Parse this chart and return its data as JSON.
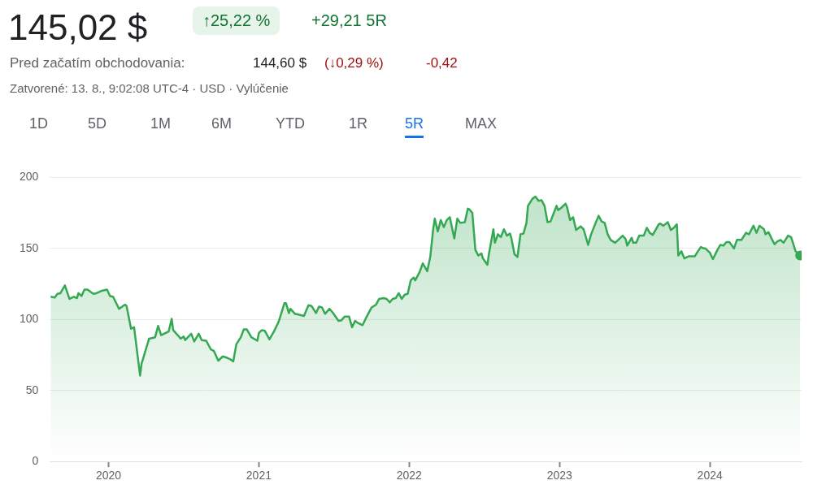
{
  "chart_data": {
    "type": "area",
    "title": "145,02 $",
    "subtitle": "Zatvorené: 13. 8., 9:02:08 UTC-4 · USD · Vylúčenie",
    "annotations": [
      "↑25,22 %",
      "+29,21 5R",
      "Pred začatím obchodovania:",
      "144,60 $",
      "(↓0,29 %)",
      "-0,42",
      "1D",
      "5D",
      "1M",
      "6M",
      "YTD",
      "1R",
      "5R",
      "MAX"
    ],
    "xlim": [
      2019.61,
      2024.61
    ],
    "xticks": [
      2020,
      2021,
      2022,
      2023,
      2024
    ],
    "ylim": [
      0,
      200
    ],
    "yticks": [
      0,
      50,
      100,
      150,
      200
    ],
    "grid": "y",
    "legend": false,
    "series": [
      {
        "color": "#34a853",
        "x": [
          2019.615,
          2019.642,
          2019.66,
          2019.68,
          2019.71,
          2019.74,
          2019.77,
          2019.79,
          2019.8,
          2019.82,
          2019.84,
          2019.86,
          2019.9,
          2019.92,
          2019.95,
          2019.99,
          2020.01,
          2020.03,
          2020.07,
          2020.11,
          2020.12,
          2020.15,
          2020.17,
          2020.21,
          2020.22,
          2020.27,
          2020.31,
          2020.33,
          2020.35,
          2020.4,
          2020.42,
          2020.43,
          2020.46,
          2020.48,
          2020.5,
          2020.51,
          2020.55,
          2020.57,
          2020.6,
          2020.62,
          2020.65,
          2020.68,
          2020.7,
          2020.73,
          2020.76,
          2020.79,
          2020.81,
          2020.83,
          2020.85,
          2020.88,
          2020.9,
          2020.92,
          2020.95,
          2020.99,
          2021.0,
          2021.02,
          2021.04,
          2021.07,
          2021.1,
          2021.13,
          2021.15,
          2021.17,
          2021.18,
          2021.2,
          2021.21,
          2021.24,
          2021.28,
          2021.3,
          2021.33,
          2021.35,
          2021.38,
          2021.4,
          2021.42,
          2021.44,
          2021.47,
          2021.49,
          2021.53,
          2021.55,
          2021.57,
          2021.6,
          2021.62,
          2021.64,
          2021.66,
          2021.69,
          2021.71,
          2021.75,
          2021.78,
          2021.8,
          2021.83,
          2021.85,
          2021.87,
          2021.89,
          2021.91,
          2021.93,
          2021.95,
          2021.97,
          2021.99,
          2022.01,
          2022.03,
          2022.04,
          2022.07,
          2022.09,
          2022.12,
          2022.14,
          2022.16,
          2022.17,
          2022.19,
          2022.21,
          2022.23,
          2022.25,
          2022.27,
          2022.29,
          2022.3,
          2022.32,
          2022.34,
          2022.37,
          2022.39,
          2022.4,
          2022.42,
          2022.44,
          2022.46,
          2022.48,
          2022.49,
          2022.52,
          2022.53,
          2022.56,
          2022.57,
          2022.59,
          2022.61,
          2022.63,
          2022.65,
          2022.67,
          2022.68,
          2022.7,
          2022.72,
          2022.74,
          2022.76,
          2022.78,
          2022.79,
          2022.82,
          2022.84,
          2022.86,
          2022.88,
          2022.9,
          2022.92,
          2022.94,
          2022.98,
          2022.99,
          2023.01,
          2023.04,
          2023.05,
          2023.07,
          2023.09,
          2023.11,
          2023.14,
          2023.16,
          2023.19,
          2023.21,
          2023.24,
          2023.26,
          2023.28,
          2023.3,
          2023.32,
          2023.34,
          2023.37,
          2023.4,
          2023.42,
          2023.44,
          2023.45,
          2023.48,
          2023.49,
          2023.51,
          2023.53,
          2023.56,
          2023.58,
          2023.6,
          2023.62,
          2023.66,
          2023.67,
          2023.69,
          2023.72,
          2023.74,
          2023.76,
          2023.78,
          2023.79,
          2023.81,
          2023.83,
          2023.86,
          2023.9,
          2023.92,
          2023.94,
          2023.96,
          2023.97,
          2024.0,
          2024.02,
          2024.05,
          2024.07,
          2024.09,
          2024.11,
          2024.13,
          2024.16,
          2024.18,
          2024.21,
          2024.24,
          2024.26,
          2024.29,
          2024.31,
          2024.33,
          2024.36,
          2024.37,
          2024.39,
          2024.41,
          2024.43,
          2024.45,
          2024.47,
          2024.49,
          2024.52,
          2024.54,
          2024.57,
          2024.6
        ],
        "values": [
          116,
          115.5,
          118,
          118.5,
          124,
          114.5,
          116,
          115,
          118.5,
          116.5,
          121,
          121,
          118,
          118.5,
          120,
          121,
          116.5,
          116,
          107.5,
          110.5,
          109.5,
          93.5,
          94.5,
          60.5,
          69,
          86.5,
          87.5,
          95.5,
          89,
          91.5,
          100.5,
          92.5,
          89,
          86.5,
          88,
          85.5,
          90,
          84.5,
          90,
          85.5,
          85,
          79,
          78,
          71,
          74,
          73,
          72,
          70.5,
          82.5,
          87.5,
          93,
          93,
          87.5,
          85,
          90.5,
          92.5,
          92,
          86,
          91.5,
          98,
          104.5,
          111.5,
          111.5,
          104.5,
          107.5,
          104,
          103,
          102.5,
          110,
          109.5,
          104.5,
          109,
          108.5,
          104,
          107.5,
          105,
          99,
          99.5,
          102,
          102,
          94.5,
          99,
          97.5,
          96,
          100.5,
          108.5,
          110.5,
          114.5,
          115,
          114.5,
          112,
          114.5,
          115,
          118.5,
          114.5,
          117.5,
          118,
          127.5,
          129.5,
          127.5,
          133.5,
          139.5,
          134,
          144,
          164,
          171,
          162,
          170,
          165,
          170,
          172,
          162,
          157,
          171,
          168,
          168.5,
          178,
          177.5,
          175,
          149,
          145,
          146.5,
          143,
          138.5,
          146,
          163.5,
          154,
          160,
          158,
          163.5,
          159,
          160.5,
          157,
          146,
          144,
          160,
          160.5,
          168,
          180,
          185,
          186.5,
          183.5,
          184,
          180,
          168.5,
          169,
          180,
          177,
          178.5,
          181.5,
          179,
          170,
          172,
          163,
          165.5,
          163.5,
          152.5,
          160,
          168,
          173,
          169,
          168,
          160,
          156,
          154,
          157,
          159,
          156.5,
          152,
          157.5,
          154,
          154,
          159,
          159,
          164.5,
          161,
          159.5,
          167,
          167.5,
          166,
          168.5,
          163,
          164.5,
          167,
          145,
          148,
          143,
          144.5,
          144.5,
          148,
          151,
          150,
          150,
          147,
          142.5,
          149,
          152.5,
          152,
          154.5,
          154.5,
          150,
          156,
          156,
          161,
          160,
          166,
          161,
          166,
          163.5,
          160,
          161.5,
          157,
          153,
          155,
          156,
          154,
          159,
          158,
          148,
          145
        ]
      }
    ]
  }
}
